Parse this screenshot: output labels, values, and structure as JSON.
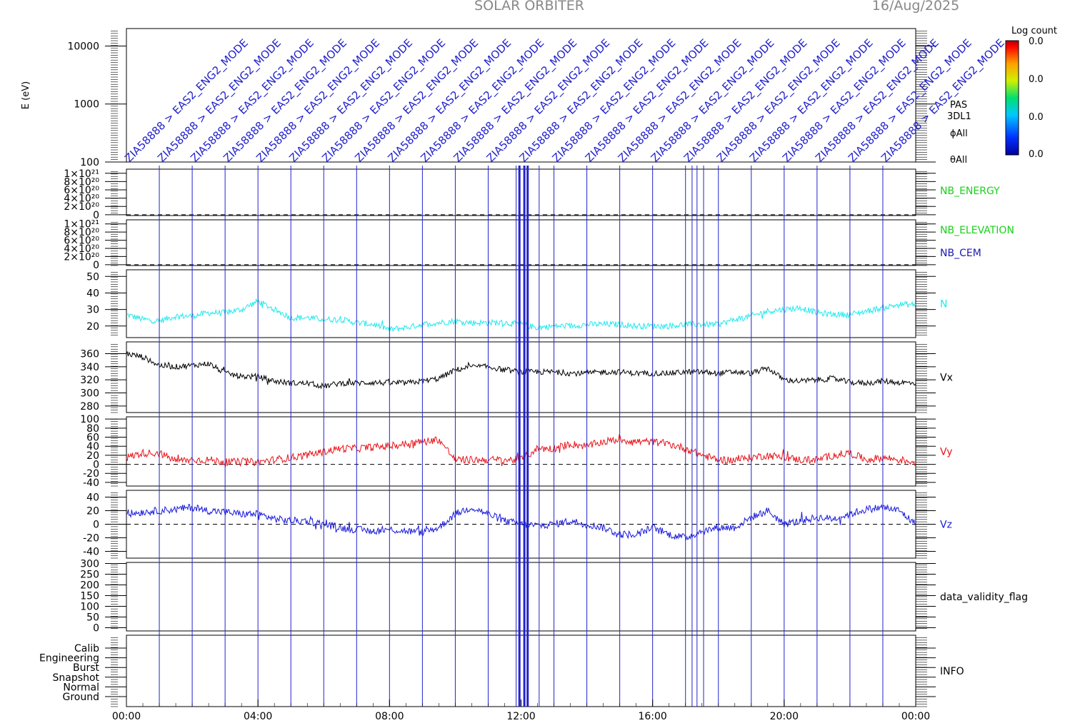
{
  "header": {
    "title": "SOLAR ORBITER",
    "date": "16/Aug/2025"
  },
  "colorbar": {
    "label": "Log count",
    "tick_labels": [
      "0.0",
      "0.0",
      "0.0",
      "0.0"
    ]
  },
  "side_labels": {
    "instrument": [
      "PAS",
      "3DL1",
      "ϕAll",
      "θAll"
    ]
  },
  "annotations": {
    "mode_label": "ZIA58888 > EAS2_ENG2_MODE",
    "count": 24
  },
  "colors": {
    "cyan": "#22e8ee",
    "black": "#000000",
    "red": "#e8141a",
    "blue": "#1a1adc",
    "green": "#1ad01a",
    "annotation": "#2222cc",
    "dark_blue": "#1a1ab4"
  },
  "chart_data": [
    {
      "type": "heatmap",
      "panel": "spectrogram",
      "ylabel": "E (eV)",
      "yscale": "log",
      "ylim": [
        100,
        20000
      ],
      "yticks": [
        "10000",
        "1000",
        "100"
      ],
      "ytick_values": [
        10000,
        1000,
        100
      ]
    },
    {
      "type": "line",
      "panel": "nb-energy",
      "series_name": "NB_ENERGY",
      "color": "#1ad01a",
      "ylim": [
        -2e+19,
        1.1e+21
      ],
      "yticks": [
        "1×10²¹",
        "8×10²⁰",
        "6×10²⁰",
        "4×10²⁰",
        "2×10²⁰",
        "0"
      ],
      "ytick_values": [
        1e+21,
        8e+20,
        6e+20,
        4e+20,
        2e+20,
        0
      ],
      "dashed_zero": true
    },
    {
      "type": "line",
      "panel": "nb-elevation",
      "series_names": [
        "NB_ELEVATION",
        "NB_CEM"
      ],
      "series_colors": [
        "#1ad01a",
        "#1a1ab4"
      ],
      "ylim": [
        -2e+19,
        1.1e+21
      ],
      "yticks": [
        "1×10²¹",
        "8×10²⁰",
        "6×10²⁰",
        "4×10²⁰",
        "2×10²⁰",
        "0"
      ],
      "ytick_values": [
        1e+21,
        8e+20,
        6e+20,
        4e+20,
        2e+20,
        0
      ],
      "dashed_zero": true
    },
    {
      "type": "line",
      "panel": "density",
      "series_name": "N",
      "color": "#22e8ee",
      "ylim": [
        13,
        54
      ],
      "yticks": [
        "50",
        "40",
        "30",
        "20"
      ],
      "ytick_values": [
        50,
        40,
        30,
        20
      ],
      "x": [
        0,
        0.5,
        1,
        1.5,
        2,
        2.5,
        3,
        3.5,
        4,
        4.5,
        5,
        5.5,
        6,
        6.5,
        7,
        7.5,
        8,
        8.5,
        9,
        9.5,
        10,
        10.5,
        11,
        11.5,
        12,
        12.5,
        13,
        13.5,
        14,
        14.5,
        15,
        15.5,
        16,
        16.5,
        17,
        17.5,
        18,
        18.5,
        19,
        19.5,
        20,
        20.5,
        21,
        21.5,
        22,
        22.5,
        23,
        23.5,
        24
      ],
      "values": [
        27,
        24,
        23,
        26,
        26,
        28,
        28,
        30,
        35,
        30,
        25,
        25,
        24,
        24,
        22,
        21,
        18,
        19,
        21,
        22,
        23,
        22,
        22,
        22,
        21,
        19,
        20,
        20,
        21,
        21,
        21,
        20,
        20,
        20,
        21,
        21,
        21,
        24,
        26,
        29,
        30,
        31,
        28,
        27,
        27,
        29,
        31,
        33,
        33
      ]
    },
    {
      "type": "line",
      "panel": "vx",
      "series_name": "Vx",
      "color": "#000000",
      "ylim": [
        270,
        378
      ],
      "yticks": [
        "360",
        "340",
        "320",
        "300",
        "280"
      ],
      "ytick_values": [
        360,
        340,
        320,
        300,
        280
      ],
      "x": [
        0,
        0.5,
        1,
        1.5,
        2,
        2.5,
        3,
        3.5,
        4,
        4.5,
        5,
        5.5,
        6,
        6.5,
        7,
        7.5,
        8,
        8.5,
        9,
        9.5,
        10,
        10.5,
        11,
        11.5,
        12,
        12.5,
        13,
        13.5,
        14,
        14.5,
        15,
        15.5,
        16,
        16.5,
        17,
        17.5,
        18,
        18.5,
        19,
        19.5,
        20,
        20.5,
        21,
        21.5,
        22,
        22.5,
        23,
        23.5,
        24
      ],
      "values": [
        360,
        355,
        342,
        340,
        342,
        345,
        330,
        325,
        325,
        318,
        315,
        315,
        310,
        315,
        315,
        316,
        315,
        315,
        318,
        322,
        335,
        340,
        340,
        335,
        332,
        332,
        332,
        330,
        330,
        332,
        332,
        330,
        330,
        330,
        332,
        332,
        330,
        332,
        330,
        338,
        320,
        318,
        320,
        322,
        316,
        315,
        318,
        316,
        315
      ]
    },
    {
      "type": "line",
      "panel": "vy",
      "series_name": "Vy",
      "color": "#e8141a",
      "ylim": [
        -48,
        105
      ],
      "yticks": [
        "100",
        "80",
        "60",
        "40",
        "20",
        "0",
        "-20",
        "-40"
      ],
      "ytick_values": [
        100,
        80,
        60,
        40,
        20,
        0,
        -20,
        -40
      ],
      "dashed_zero": true,
      "x": [
        0,
        0.5,
        1,
        1.5,
        2,
        2.5,
        3,
        3.5,
        4,
        4.5,
        5,
        5.5,
        6,
        6.5,
        7,
        7.5,
        8,
        8.5,
        9,
        9.5,
        10,
        10.5,
        11,
        11.5,
        12,
        12.5,
        13,
        13.5,
        14,
        14.5,
        15,
        15.5,
        16,
        16.5,
        17,
        17.5,
        18,
        18.5,
        19,
        19.5,
        20,
        20.5,
        21,
        21.5,
        22,
        22.5,
        23,
        23.5,
        24
      ],
      "values": [
        15,
        25,
        25,
        8,
        10,
        10,
        5,
        5,
        5,
        10,
        15,
        20,
        28,
        35,
        35,
        38,
        40,
        45,
        50,
        55,
        10,
        10,
        10,
        10,
        10,
        35,
        35,
        45,
        40,
        50,
        55,
        50,
        50,
        45,
        35,
        20,
        10,
        10,
        15,
        20,
        15,
        10,
        10,
        20,
        25,
        10,
        15,
        10,
        5
      ]
    },
    {
      "type": "line",
      "panel": "vz",
      "series_name": "Vz",
      "color": "#1a1adc",
      "ylim": [
        -50,
        50
      ],
      "yticks": [
        "40",
        "20",
        "0",
        "-20",
        "-40"
      ],
      "ytick_values": [
        40,
        20,
        0,
        -20,
        -40
      ],
      "dashed_zero": true,
      "x": [
        0,
        0.5,
        1,
        1.5,
        2,
        2.5,
        3,
        3.5,
        4,
        4.5,
        5,
        5.5,
        6,
        6.5,
        7,
        7.5,
        8,
        8.5,
        9,
        9.5,
        10,
        10.5,
        11,
        11.5,
        12,
        12.5,
        13,
        13.5,
        14,
        14.5,
        15,
        15.5,
        16,
        16.5,
        17,
        17.5,
        18,
        18.5,
        19,
        19.5,
        20,
        20.5,
        21,
        21.5,
        22,
        22.5,
        23,
        23.5,
        24
      ],
      "values": [
        15,
        18,
        20,
        22,
        25,
        20,
        18,
        15,
        15,
        8,
        5,
        5,
        0,
        -5,
        -8,
        -10,
        -8,
        -10,
        -12,
        -5,
        15,
        25,
        15,
        5,
        0,
        -2,
        0,
        5,
        0,
        -5,
        -15,
        -15,
        -5,
        -15,
        -20,
        -10,
        -5,
        -5,
        10,
        20,
        0,
        5,
        10,
        8,
        15,
        22,
        25,
        20,
        0
      ]
    },
    {
      "type": "line",
      "panel": "validity",
      "series_name": "data_validity_flag",
      "ylim": [
        -15,
        305
      ],
      "yticks": [
        "300",
        "250",
        "200",
        "150",
        "100",
        "50",
        "0"
      ],
      "ytick_values": [
        300,
        250,
        200,
        150,
        100,
        50,
        0
      ]
    },
    {
      "type": "line",
      "panel": "info",
      "series_name": "INFO",
      "yticks": [
        "Calib",
        "Engineering",
        "Burst",
        "Snapshot",
        "Normal",
        "Ground"
      ]
    }
  ],
  "x_axis": {
    "range_hours": [
      0,
      24
    ],
    "tick_labels": [
      "00:00",
      "04:00",
      "08:00",
      "12:00",
      "16:00",
      "20:00",
      "00:00"
    ],
    "tick_hours": [
      0,
      4,
      8,
      12,
      16,
      20,
      24
    ]
  }
}
